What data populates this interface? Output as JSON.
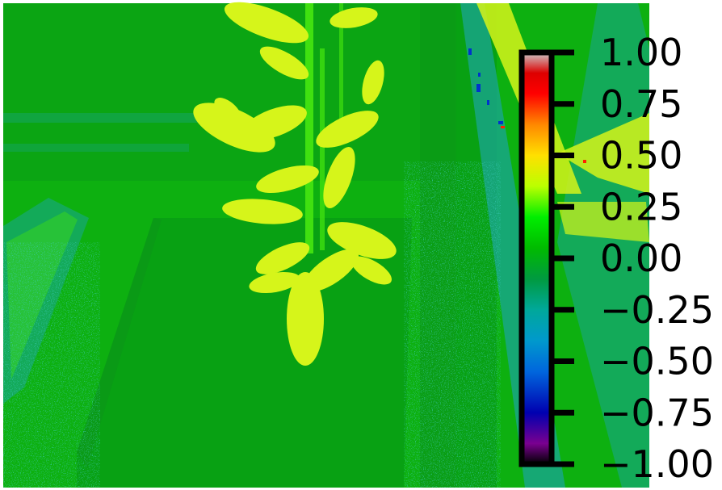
{
  "image": {
    "kind": "false-color vegetation index map",
    "scene_regions": [
      "plant-leaves",
      "background-floor",
      "shadowed-panel",
      "side-pipe"
    ]
  },
  "colorbar": {
    "min": -1.0,
    "max": 1.0,
    "colormap": "nipy_spectral",
    "ticks": [
      {
        "value": 1.0,
        "label": "1.00"
      },
      {
        "value": 0.75,
        "label": "0.75"
      },
      {
        "value": 0.5,
        "label": "0.50"
      },
      {
        "value": 0.25,
        "label": "0.25"
      },
      {
        "value": 0.0,
        "label": "0.00"
      },
      {
        "value": -0.25,
        "label": "−0.25"
      },
      {
        "value": -0.5,
        "label": "−0.50"
      },
      {
        "value": -0.75,
        "label": "−0.75"
      },
      {
        "value": -1.0,
        "label": "−1.00"
      }
    ],
    "stops": [
      {
        "value": -1.0,
        "color": "#000000"
      },
      {
        "value": -0.9,
        "color": "#7a0090"
      },
      {
        "value": -0.75,
        "color": "#0000b0"
      },
      {
        "value": -0.55,
        "color": "#0066dd"
      },
      {
        "value": -0.4,
        "color": "#0099cc"
      },
      {
        "value": -0.25,
        "color": "#00a89a"
      },
      {
        "value": -0.1,
        "color": "#009a40"
      },
      {
        "value": 0.05,
        "color": "#00bb00"
      },
      {
        "value": 0.2,
        "color": "#00ee00"
      },
      {
        "value": 0.35,
        "color": "#bbff00"
      },
      {
        "value": 0.5,
        "color": "#ffe000"
      },
      {
        "value": 0.65,
        "color": "#ff8800"
      },
      {
        "value": 0.8,
        "color": "#ff0000"
      },
      {
        "value": 0.9,
        "color": "#dd0000"
      },
      {
        "value": 1.0,
        "color": "#cccccc"
      }
    ]
  },
  "colors": {
    "background_green": "#0db010",
    "floor_green": "#0a9a16",
    "panel_green": "#08a014",
    "leaf_yellow": "#d6f51a",
    "leaf_bright": "#e8ff2a",
    "stem_green": "#40e010",
    "cyan_noise": "#1aa595",
    "blue_noise": "#0033cc"
  }
}
